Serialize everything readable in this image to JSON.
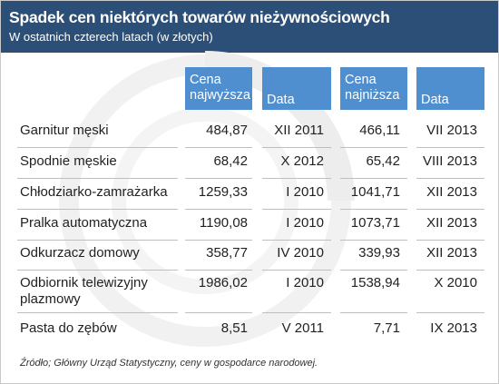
{
  "title": "Spadek cen niektórych towarów nieżywnościowych",
  "subtitle": "W ostatnich czterech latach (w złotych)",
  "columns": {
    "max_price": "Cena najwyższa",
    "max_date": "Data",
    "min_price": "Cena najniższa",
    "min_date": "Data"
  },
  "source": "Źródło; Główny Urząd Statystyczny, ceny w gospodarce narodowej.",
  "colors": {
    "header_bg": "#2c4f78",
    "column_header_bg": "#4f8fd0"
  },
  "chart_data": {
    "type": "table",
    "title": "Spadek cen niektórych towarów nieżywnościowych",
    "subtitle": "W ostatnich czterech latach (w złotych)",
    "columns": [
      "",
      "Cena najwyższa",
      "Data",
      "Cena najniższa",
      "Data"
    ],
    "rows": [
      {
        "name": "Garnitur męski",
        "max_price": "484,87",
        "max_date": "XII 2011",
        "min_price": "466,11",
        "min_date": "VII 2013"
      },
      {
        "name": "Spodnie męskie",
        "max_price": "68,42",
        "max_date": "X 2012",
        "min_price": "65,42",
        "min_date": "VIII 2013"
      },
      {
        "name": "Chłodziarko-zamrażarka",
        "max_price": "1259,33",
        "max_date": "I 2010",
        "min_price": "1041,71",
        "min_date": "XII 2013"
      },
      {
        "name": "Pralka automatyczna",
        "max_price": "1190,08",
        "max_date": "I 2010",
        "min_price": "1073,71",
        "min_date": "XII 2013"
      },
      {
        "name": "Odkurzacz domowy",
        "max_price": "358,77",
        "max_date": "IV 2010",
        "min_price": "339,93",
        "min_date": "XII 2013"
      },
      {
        "name": "Odbiornik telewizyjny plazmowy",
        "max_price": "1986,02",
        "max_date": "I 2010",
        "min_price": "1538,94",
        "min_date": "X 2010"
      },
      {
        "name": "Pasta do zębów",
        "max_price": "8,51",
        "max_date": "V 2011",
        "min_price": "7,71",
        "min_date": "IX 2013"
      }
    ]
  }
}
